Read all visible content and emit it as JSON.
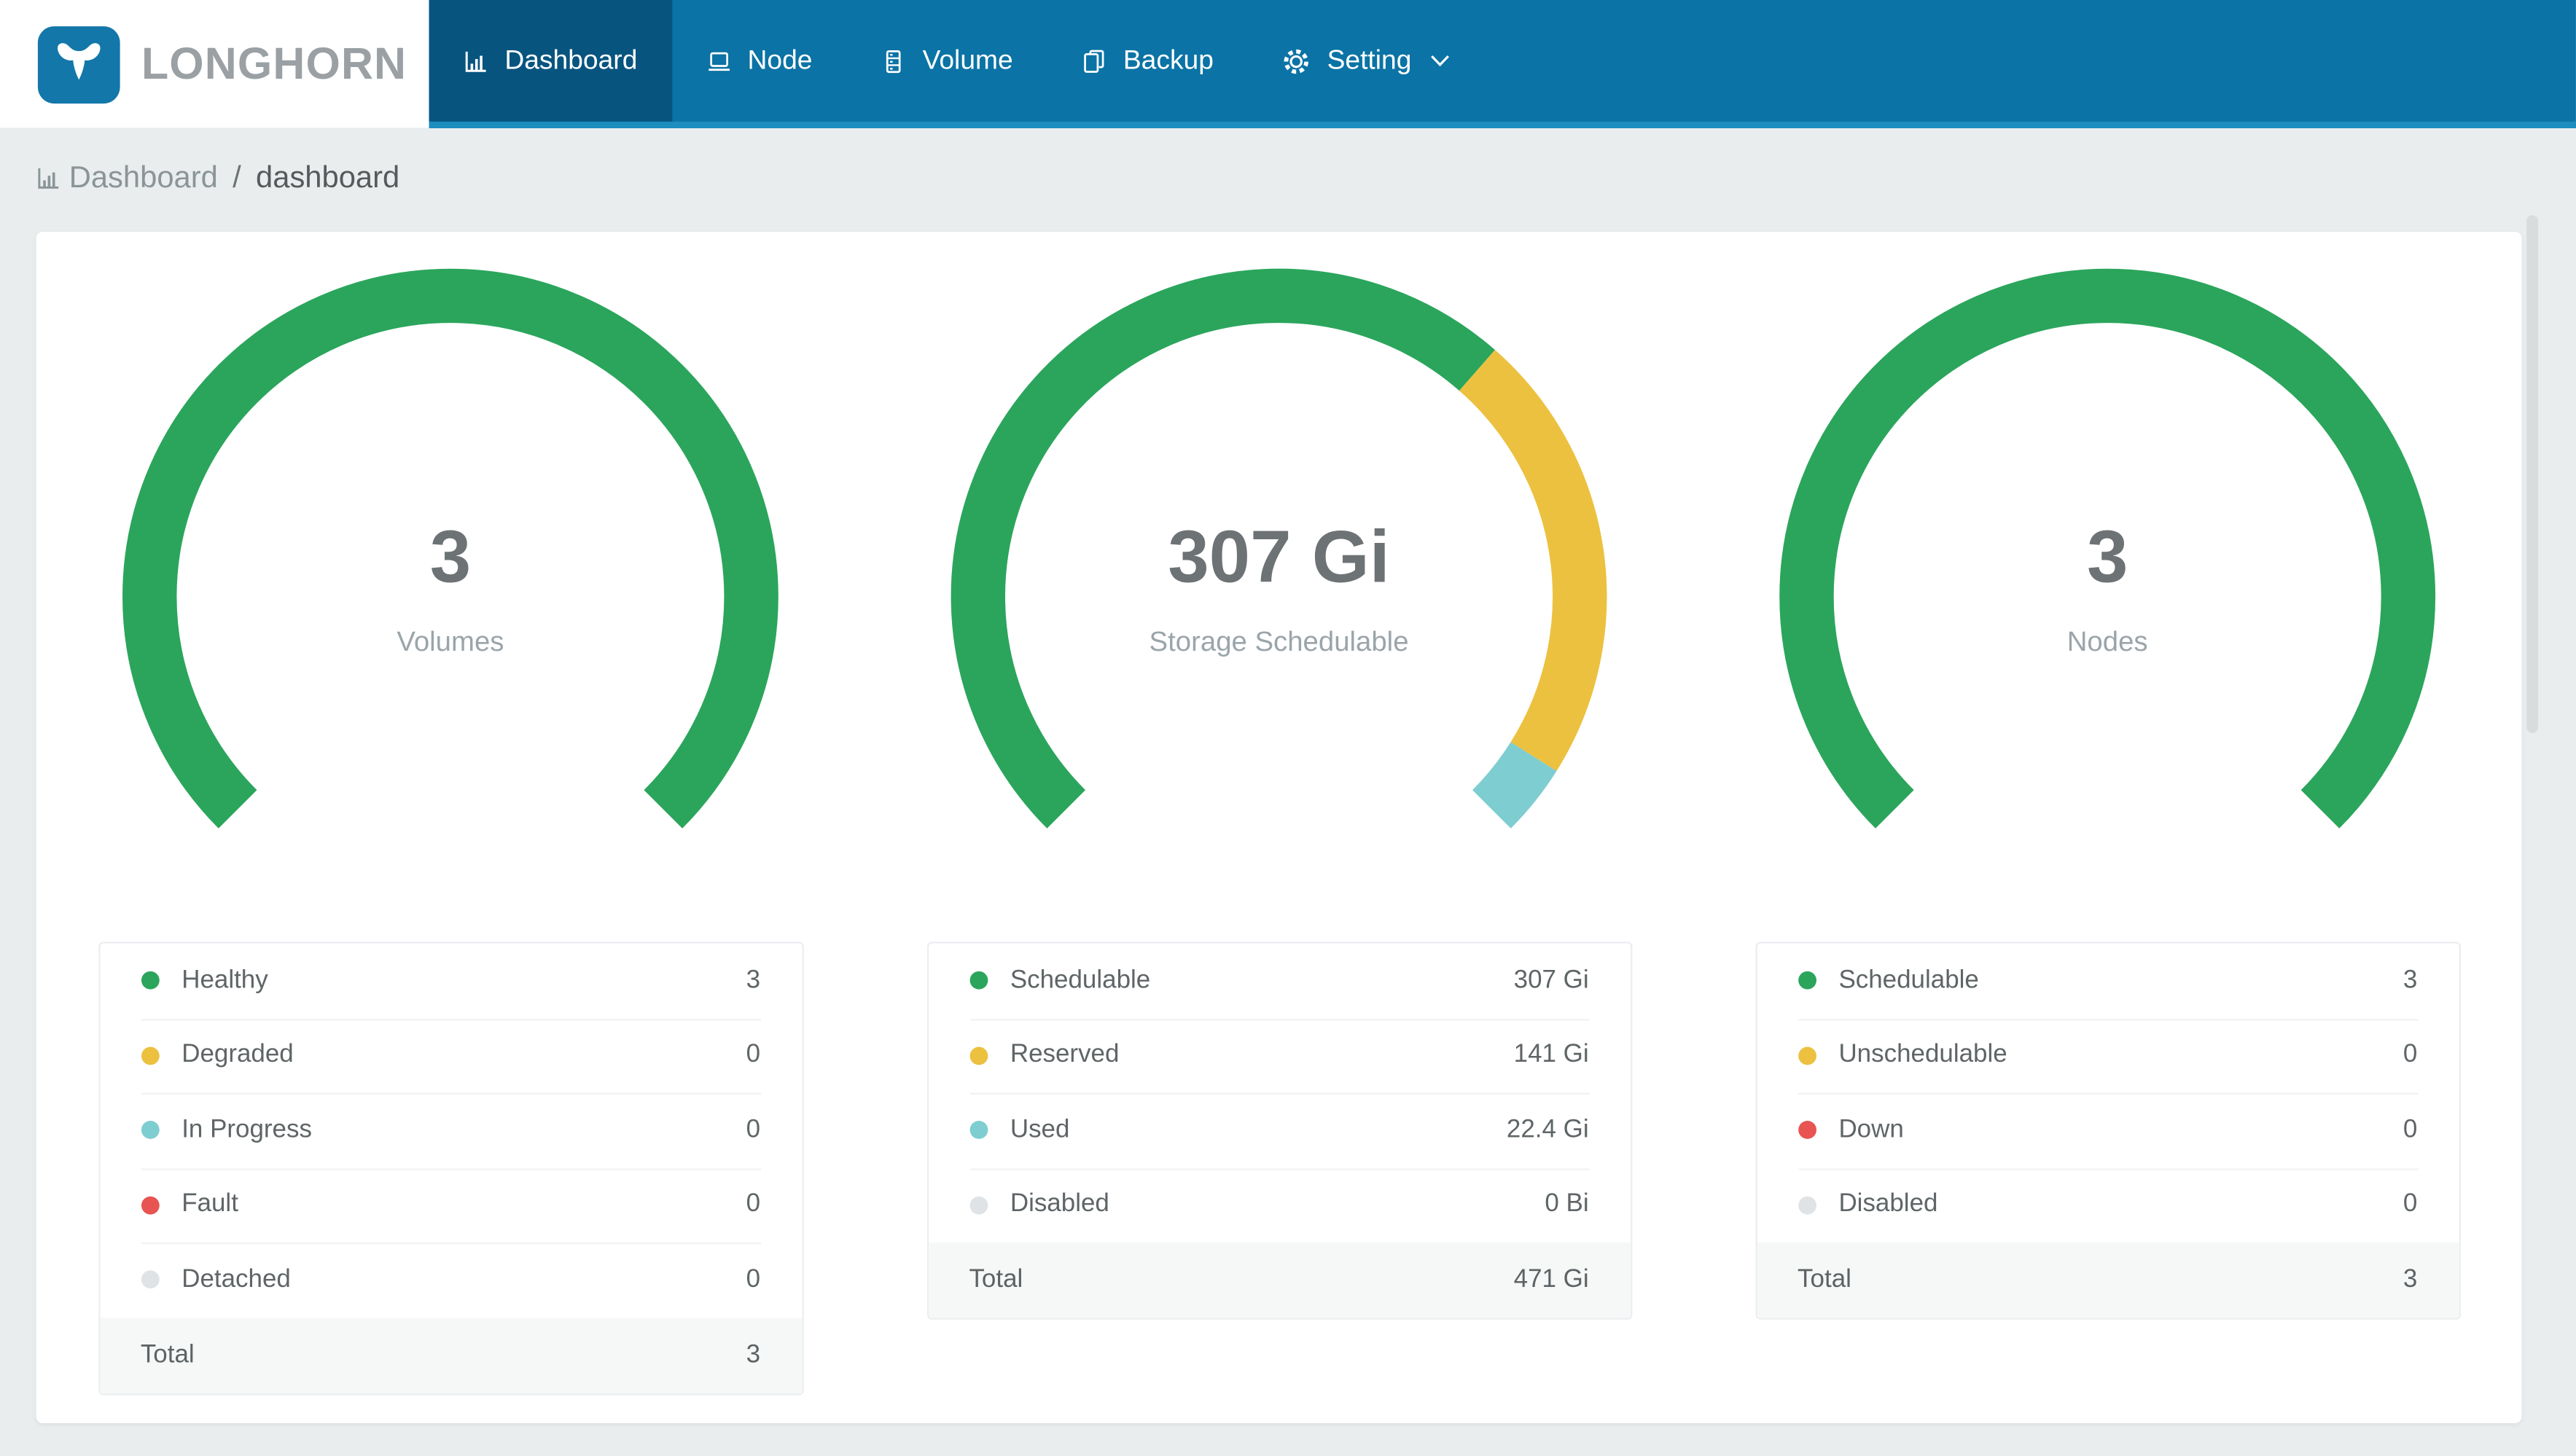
{
  "brand": {
    "name": "LONGHORN"
  },
  "nav": {
    "items": [
      {
        "label": "Dashboard",
        "icon": "bar-chart-icon",
        "active": true,
        "has_dropdown": false
      },
      {
        "label": "Node",
        "icon": "node-icon",
        "active": false,
        "has_dropdown": false
      },
      {
        "label": "Volume",
        "icon": "volume-icon",
        "active": false,
        "has_dropdown": false
      },
      {
        "label": "Backup",
        "icon": "backup-icon",
        "active": false,
        "has_dropdown": false
      },
      {
        "label": "Setting",
        "icon": "gear-icon",
        "active": false,
        "has_dropdown": true
      }
    ]
  },
  "breadcrumb": {
    "icon": "bar-chart-icon",
    "section": "Dashboard",
    "separator": "/",
    "page": "dashboard"
  },
  "colors": {
    "navbar": "#0b73a5",
    "navbar_active": "#07547f",
    "nav_indicator": "#1d8cbe",
    "brand_blue": "#1377a9",
    "page_bg": "#e9edee",
    "green": "#2ba55c",
    "yellow": "#ecc140",
    "teal": "#7ecdd1",
    "red": "#e85451",
    "gray": "#dfe3e6"
  },
  "chart_data": [
    {
      "type": "gauge",
      "title": "Volumes",
      "center_value": "3",
      "center_label": "Volumes",
      "arc_span_degrees": 270,
      "segments": [
        {
          "label": "Healthy",
          "value": 3,
          "display_value": "3",
          "color": "#2ba55c"
        },
        {
          "label": "Degraded",
          "value": 0,
          "display_value": "0",
          "color": "#ecc140"
        },
        {
          "label": "In Progress",
          "value": 0,
          "display_value": "0",
          "color": "#7ecdd1"
        },
        {
          "label": "Fault",
          "value": 0,
          "display_value": "0",
          "color": "#e85451"
        },
        {
          "label": "Detached",
          "value": 0,
          "display_value": "0",
          "color": "#dfe3e6"
        }
      ],
      "total": {
        "label": "Total",
        "display_value": "3"
      }
    },
    {
      "type": "gauge",
      "title": "Storage Schedulable",
      "center_value": "307 Gi",
      "center_label": "Storage Schedulable",
      "arc_span_degrees": 270,
      "segments": [
        {
          "label": "Schedulable",
          "value": 307,
          "display_value": "307 Gi",
          "color": "#2ba55c"
        },
        {
          "label": "Reserved",
          "value": 141,
          "display_value": "141 Gi",
          "color": "#ecc140"
        },
        {
          "label": "Used",
          "value": 22.4,
          "display_value": "22.4 Gi",
          "color": "#7ecdd1"
        },
        {
          "label": "Disabled",
          "value": 0,
          "display_value": "0 Bi",
          "color": "#dfe3e6"
        }
      ],
      "total": {
        "label": "Total",
        "display_value": "471 Gi"
      }
    },
    {
      "type": "gauge",
      "title": "Nodes",
      "center_value": "3",
      "center_label": "Nodes",
      "arc_span_degrees": 270,
      "segments": [
        {
          "label": "Schedulable",
          "value": 3,
          "display_value": "3",
          "color": "#2ba55c"
        },
        {
          "label": "Unschedulable",
          "value": 0,
          "display_value": "0",
          "color": "#ecc140"
        },
        {
          "label": "Down",
          "value": 0,
          "display_value": "0",
          "color": "#e85451"
        },
        {
          "label": "Disabled",
          "value": 0,
          "display_value": "0",
          "color": "#dfe3e6"
        }
      ],
      "total": {
        "label": "Total",
        "display_value": "3"
      }
    }
  ]
}
